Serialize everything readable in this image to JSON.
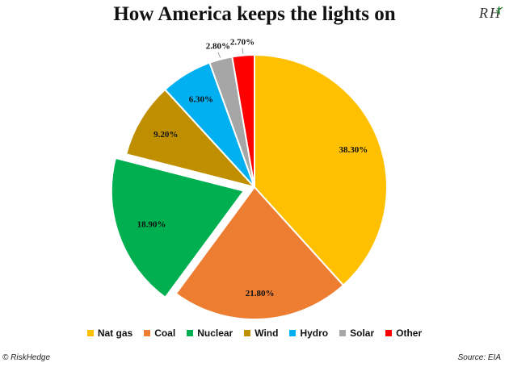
{
  "header": {
    "title": "How America keeps the lights on",
    "logo_text": "RH"
  },
  "footer": {
    "copyright": "© RiskHedge",
    "source": "Source: EIA"
  },
  "chart_data": {
    "type": "pie",
    "title": "How America keeps the lights on",
    "categories": [
      "Nat gas",
      "Coal",
      "Nuclear",
      "Wind",
      "Hydro",
      "Solar",
      "Other"
    ],
    "values": [
      38.3,
      21.8,
      18.9,
      9.2,
      6.3,
      2.8,
      2.7
    ],
    "labels": [
      "38.30%",
      "21.80%",
      "18.90%",
      "9.20%",
      "6.30%",
      "2.80%",
      "2.70%"
    ],
    "colors": [
      "#FFC000",
      "#ED7D31",
      "#00B050",
      "#BF8F00",
      "#00B0F0",
      "#A6A6A6",
      "#FF0000"
    ],
    "exploded": [
      false,
      false,
      true,
      false,
      false,
      false,
      false
    ],
    "legend_position": "bottom"
  }
}
